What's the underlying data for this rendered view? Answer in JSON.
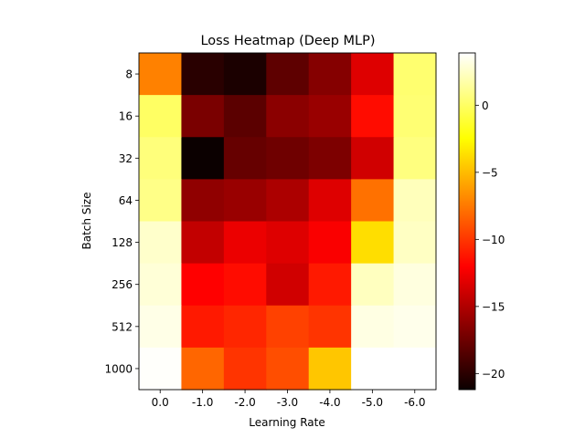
{
  "chart_data": {
    "type": "heatmap",
    "title": "Loss Heatmap (Deep MLP)",
    "xlabel": "Learning Rate",
    "ylabel": "Batch Size",
    "x_categories": [
      "0.0",
      "-1.0",
      "-2.0",
      "-3.0",
      "-4.0",
      "-5.0",
      "-6.0"
    ],
    "y_categories": [
      "8",
      "16",
      "32",
      "64",
      "128",
      "256",
      "512",
      "1000"
    ],
    "values": [
      [
        -7.2,
        -20.1,
        -20.6,
        -18.2,
        -16.8,
        -13.6,
        0.3
      ],
      [
        0.0,
        -17.2,
        -18.3,
        -16.6,
        -16.1,
        -11.6,
        0.4
      ],
      [
        0.6,
        -21.2,
        -17.9,
        -17.6,
        -17.1,
        -14.1,
        0.7
      ],
      [
        0.9,
        -16.4,
        -16.1,
        -15.4,
        -13.6,
        -7.8,
        2.2
      ],
      [
        2.6,
        -14.6,
        -13.1,
        -13.6,
        -12.6,
        -3.7,
        2.4
      ],
      [
        2.9,
        -12.1,
        -11.6,
        -14.1,
        -11.1,
        2.3,
        3.1
      ],
      [
        3.3,
        -11.1,
        -10.6,
        -9.6,
        -10.1,
        3.2,
        3.4
      ],
      [
        3.8,
        -8.2,
        -10.1,
        -9.1,
        -4.6,
        3.9,
        3.9
      ]
    ],
    "colormap": "hot",
    "colorbar": {
      "vmin": -21.2,
      "vmax": 3.9,
      "ticks": [
        0,
        -5,
        -10,
        -15,
        -20
      ],
      "tick_labels": [
        "0",
        "−5",
        "−10",
        "−15",
        "−20"
      ]
    }
  }
}
